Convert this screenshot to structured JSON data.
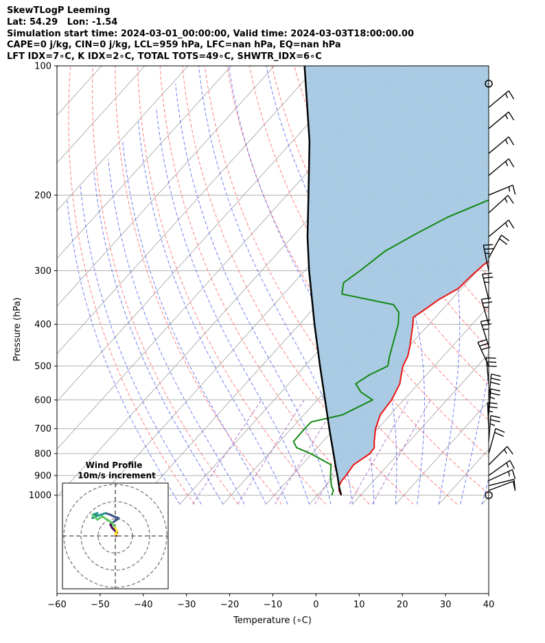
{
  "header": {
    "line1": "SkewTLogP Leeming",
    "line2": "Lat: 54.29   Lon: -1.54",
    "line3": "Simulation start time: 2024-03-01_00:00:00, Valid time: 2024-03-03T18:00:00.00",
    "line4": "CAPE=0 j/kg, CIN=0 j/kg, LCL=959 hPa, LFC=nan hPa, EQ=nan hPa",
    "line5": "LFT IDX=7∘C, K IDX=2∘C, TOTAL TOTS=49∘C, SHWTR_IDX=6∘C"
  },
  "chart_data": {
    "type": "skew-t log-p",
    "xlabel": "Temperature (∘C)",
    "ylabel": "Pressure (hPa)",
    "xlim": [
      -60,
      40
    ],
    "ylim": [
      1050,
      100
    ],
    "x_scale": "linear (skewed isotherms)",
    "y_scale": "log",
    "x_ticks": [
      -60,
      -50,
      -40,
      -30,
      -20,
      -10,
      0,
      10,
      20,
      30,
      40
    ],
    "y_ticks": [
      1000,
      900,
      800,
      700,
      600,
      500,
      400,
      300,
      200,
      100
    ],
    "grid": true,
    "colors": {
      "temperature": "#ee1111",
      "dewpoint": "#118811",
      "parcel": "#000000",
      "cape_fill": "#a5c8e1",
      "dry_adiabats": "#ff6666",
      "moist_adiabats": "#5566ee",
      "mixing_ratio": "#9b59b6",
      "isotherms": "#aaaaaa"
    },
    "series": [
      {
        "name": "temperature",
        "points": [
          [
            1000,
            5.5
          ],
          [
            975,
            4.0
          ],
          [
            950,
            3.0
          ],
          [
            925,
            2.6
          ],
          [
            900,
            2.5
          ],
          [
            850,
            2.0
          ],
          [
            800,
            3.4
          ],
          [
            775,
            3.2
          ],
          [
            750,
            1.9
          ],
          [
            700,
            -0.5
          ],
          [
            650,
            -2.3
          ],
          [
            600,
            -2.8
          ],
          [
            550,
            -4.3
          ],
          [
            525,
            -5.8
          ],
          [
            500,
            -7.3
          ],
          [
            475,
            -8.2
          ],
          [
            450,
            -9.8
          ],
          [
            425,
            -11.7
          ],
          [
            400,
            -13.7
          ],
          [
            385,
            -15.1
          ],
          [
            370,
            -14.1
          ],
          [
            350,
            -12.9
          ],
          [
            330,
            -10.7
          ],
          [
            310,
            -10.4
          ],
          [
            290,
            -9.8
          ],
          [
            280,
            -8.7
          ],
          [
            270,
            -7.1
          ],
          [
            260,
            -6.3
          ],
          [
            240,
            -4.8
          ],
          [
            220,
            -3.6
          ],
          [
            200,
            -1.4
          ],
          [
            180,
            2.7
          ],
          [
            170,
            6.6
          ],
          [
            160,
            10.8
          ],
          [
            150,
            13.5
          ],
          [
            140,
            15.4
          ],
          [
            130,
            16.8
          ],
          [
            120,
            16.6
          ],
          [
            115,
            17.2
          ],
          [
            110,
            18.3
          ],
          [
            105,
            19.0
          ],
          [
            100,
            20.2
          ]
        ]
      },
      {
        "name": "dewpoint",
        "points": [
          [
            1000,
            3.3
          ],
          [
            975,
            2.7
          ],
          [
            950,
            1.2
          ],
          [
            900,
            -1.1
          ],
          [
            850,
            -3.2
          ],
          [
            800,
            -10.3
          ],
          [
            775,
            -14.8
          ],
          [
            750,
            -16.8
          ],
          [
            700,
            -16.9
          ],
          [
            675,
            -16.8
          ],
          [
            650,
            -11.1
          ],
          [
            600,
            -7.2
          ],
          [
            575,
            -11.6
          ],
          [
            550,
            -14.5
          ],
          [
            525,
            -13.2
          ],
          [
            500,
            -10.8
          ],
          [
            475,
            -12.4
          ],
          [
            450,
            -13.9
          ],
          [
            400,
            -17.1
          ],
          [
            375,
            -19.5
          ],
          [
            360,
            -22.3
          ],
          [
            340,
            -36.5
          ],
          [
            320,
            -38.5
          ],
          [
            300,
            -37.2
          ],
          [
            270,
            -35.5
          ],
          [
            245,
            -31.8
          ],
          [
            225,
            -28.1
          ],
          [
            205,
            -22.1
          ],
          [
            180,
            -17.3
          ],
          [
            165,
            -15.8
          ],
          [
            140,
            -9.7
          ],
          [
            120,
            -4.9
          ],
          [
            110,
            -0.8
          ],
          [
            100,
            1.7
          ]
        ]
      },
      {
        "name": "parcel",
        "points": [
          [
            1000,
            5.5
          ],
          [
            959,
            3.4
          ],
          [
            900,
            0.5
          ],
          [
            850,
            -2.2
          ],
          [
            800,
            -5.0
          ],
          [
            700,
            -11.2
          ],
          [
            600,
            -18.2
          ],
          [
            500,
            -26.5
          ],
          [
            400,
            -36.5
          ],
          [
            300,
            -49.0
          ],
          [
            250,
            -56.5
          ],
          [
            200,
            -65.0
          ],
          [
            150,
            -76.0
          ],
          [
            100,
            -93.0
          ]
        ]
      }
    ],
    "wind_barbs": [
      {
        "p": 1000,
        "calm": true
      },
      {
        "p": 975,
        "u": 8,
        "v": 3
      },
      {
        "p": 950,
        "u": 12,
        "v": 3
      },
      {
        "p": 925,
        "u": 15,
        "v": 7
      },
      {
        "p": 900,
        "u": 14,
        "v": 10
      },
      {
        "p": 850,
        "u": 12,
        "v": 12
      },
      {
        "p": 800,
        "u": 5,
        "v": 18
      },
      {
        "p": 750,
        "u": 2,
        "v": 25
      },
      {
        "p": 700,
        "u": -1,
        "v": 24
      },
      {
        "p": 650,
        "u": 2,
        "v": 25
      },
      {
        "p": 600,
        "u": 3,
        "v": 30
      },
      {
        "p": 550,
        "u": -3,
        "v": 32
      },
      {
        "p": 500,
        "u": -12,
        "v": 26
      },
      {
        "p": 450,
        "u": -8,
        "v": 25
      },
      {
        "p": 400,
        "u": -7,
        "v": 24
      },
      {
        "p": 350,
        "u": -6,
        "v": 24
      },
      {
        "p": 300,
        "u": -5,
        "v": 24
      },
      {
        "p": 280,
        "u": 10,
        "v": 18
      },
      {
        "p": 250,
        "u": 12,
        "v": 10
      },
      {
        "p": 220,
        "u": 11,
        "v": 10
      },
      {
        "p": 200,
        "u": 12,
        "v": 5
      },
      {
        "p": 180,
        "u": 12,
        "v": 10
      },
      {
        "p": 160,
        "u": 12,
        "v": 10
      },
      {
        "p": 140,
        "u": 12,
        "v": 10
      },
      {
        "p": 125,
        "u": 12,
        "v": 10
      },
      {
        "p": 110,
        "calm": true
      }
    ],
    "hodograph": {
      "title": "Wind Profile",
      "subtitle": "10m/s increment",
      "ring_increment_ms": 10,
      "rings": 3,
      "points": [
        [
          0.5,
          0
        ],
        [
          1,
          2
        ],
        [
          -1,
          4
        ],
        [
          -2,
          5
        ],
        [
          -3,
          7
        ],
        [
          -2,
          8
        ],
        [
          1,
          10
        ],
        [
          2,
          11
        ],
        [
          -1,
          12
        ],
        [
          -3,
          13
        ],
        [
          -6,
          14
        ],
        [
          -9,
          13
        ],
        [
          -12,
          12
        ],
        [
          -14,
          11
        ],
        [
          -11,
          14
        ],
        [
          -14,
          13
        ],
        [
          -11,
          10
        ],
        [
          -8,
          12
        ],
        [
          -5,
          10
        ],
        [
          -2,
          8
        ],
        [
          0,
          5
        ],
        [
          1,
          3
        ],
        [
          0,
          1
        ],
        [
          1,
          1
        ]
      ]
    }
  }
}
